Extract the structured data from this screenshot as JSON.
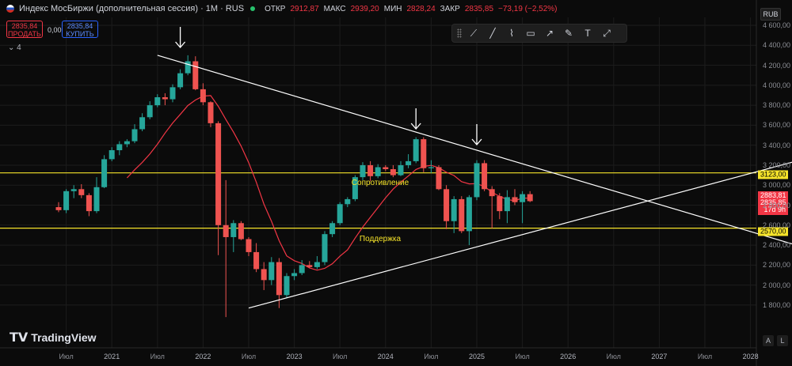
{
  "header": {
    "title": "Индекс МосБиржи (дополнительная сессия) · 1M · RUS",
    "ohlc": [
      {
        "label": "ОТКР",
        "value": "2912,87"
      },
      {
        "label": "МАКС",
        "value": "2939,20"
      },
      {
        "label": "МИН",
        "value": "2828,24"
      },
      {
        "label": "ЗАКР",
        "value": "2835,85"
      },
      {
        "label": "",
        "value": "−73,19 (−2,52%)"
      }
    ]
  },
  "trade": {
    "sell_price": "2835,84",
    "sell_label": "ПРОДАТЬ",
    "spread": "0,00",
    "buy_price": "2835,84",
    "buy_label": "КУПИТЬ"
  },
  "indicators_toggle": "4",
  "currency": "RUB",
  "toolbar": [
    "node-line-icon",
    "line-icon",
    "path-icon",
    "rectangle-icon",
    "ray-icon",
    "pencil-icon",
    "text-icon",
    "measure-icon"
  ],
  "price_tags": {
    "resistance": "3123,00",
    "support": "2570,00",
    "last_high": "2883,81",
    "last_close": "2835,85",
    "countdown": "17d 9h"
  },
  "annotations": {
    "resistance": "Сопротивление",
    "support": "Поддержка"
  },
  "logo": "TradingView",
  "corner_buttons": [
    "A",
    "L"
  ],
  "colors": {
    "up": "#26a69a",
    "down": "#ef5350",
    "ma": "#f23645",
    "level": "#f5e32a",
    "trend": "#ffffff"
  },
  "chart_data": {
    "type": "candlestick",
    "title": "Индекс МосБиржи (дополнительная сессия) · 1M · RUS",
    "ylim": [
      1600,
      4600
    ],
    "y_ticks": [
      "4 600,00",
      "4 400,00",
      "4 200,00",
      "4 000,00",
      "3 800,00",
      "3 600,00",
      "3 400,00",
      "3 200,00",
      "3 000,00",
      "2 800,00",
      "2 600,00",
      "2 400,00",
      "2 200,00",
      "2 000,00",
      "1 800,00"
    ],
    "x_ticks": [
      "Июл",
      "2021",
      "Июл",
      "2022",
      "Июл",
      "2023",
      "Июл",
      "2024",
      "Июл",
      "2025",
      "Июл",
      "2026",
      "Июл",
      "2027",
      "Июл",
      "2028"
    ],
    "candles": [
      [
        2780,
        2830,
        2730,
        2750
      ],
      [
        2750,
        2960,
        2720,
        2940
      ],
      [
        2940,
        3000,
        2870,
        2960
      ],
      [
        2960,
        3010,
        2870,
        2900
      ],
      [
        2900,
        2920,
        2690,
        2740
      ],
      [
        2740,
        3080,
        2720,
        2980
      ],
      [
        2980,
        3300,
        2970,
        3260
      ],
      [
        3260,
        3380,
        3240,
        3350
      ],
      [
        3350,
        3440,
        3300,
        3410
      ],
      [
        3410,
        3460,
        3380,
        3440
      ],
      [
        3440,
        3610,
        3420,
        3560
      ],
      [
        3560,
        3720,
        3540,
        3680
      ],
      [
        3680,
        3840,
        3660,
        3800
      ],
      [
        3800,
        3910,
        3780,
        3880
      ],
      [
        3880,
        3920,
        3800,
        3860
      ],
      [
        3860,
        4010,
        3830,
        3980
      ],
      [
        3980,
        4160,
        3960,
        4120
      ],
      [
        4120,
        4300,
        4100,
        4240
      ],
      [
        4240,
        4290,
        3950,
        3960
      ],
      [
        3960,
        4020,
        3800,
        3830
      ],
      [
        3830,
        3840,
        3580,
        3620
      ],
      [
        3620,
        3640,
        2300,
        2600
      ],
      [
        2600,
        3050,
        1680,
        2480
      ],
      [
        2480,
        2650,
        2330,
        2620
      ],
      [
        2620,
        2640,
        2450,
        2460
      ],
      [
        2460,
        2480,
        2290,
        2330
      ],
      [
        2330,
        2420,
        2130,
        2160
      ],
      [
        2160,
        2230,
        1950,
        2050
      ],
      [
        2050,
        2280,
        2000,
        2230
      ],
      [
        2230,
        2270,
        1770,
        1900
      ],
      [
        1900,
        2120,
        1870,
        2090
      ],
      [
        2090,
        2160,
        2050,
        2120
      ],
      [
        2120,
        2250,
        2100,
        2200
      ],
      [
        2200,
        2240,
        2170,
        2180
      ],
      [
        2180,
        2290,
        2160,
        2230
      ],
      [
        2230,
        2540,
        2200,
        2510
      ],
      [
        2510,
        2640,
        2480,
        2620
      ],
      [
        2620,
        2830,
        2600,
        2810
      ],
      [
        2810,
        2880,
        2780,
        2860
      ],
      [
        2860,
        3100,
        2840,
        3080
      ],
      [
        3080,
        3230,
        3050,
        3200
      ],
      [
        3200,
        3240,
        3040,
        3090
      ],
      [
        3090,
        3210,
        3070,
        3180
      ],
      [
        3180,
        3200,
        3140,
        3160
      ],
      [
        3160,
        3200,
        3080,
        3100
      ],
      [
        3100,
        3240,
        3090,
        3200
      ],
      [
        3200,
        3310,
        3170,
        3240
      ],
      [
        3240,
        3480,
        3220,
        3460
      ],
      [
        3460,
        3480,
        3130,
        3170
      ],
      [
        3170,
        3250,
        3120,
        3180
      ],
      [
        3180,
        3200,
        2950,
        2960
      ],
      [
        2960,
        3000,
        2560,
        2640
      ],
      [
        2640,
        2890,
        2520,
        2860
      ],
      [
        2860,
        2890,
        2520,
        2540
      ],
      [
        2540,
        2900,
        2400,
        2880
      ],
      [
        2880,
        3250,
        2850,
        3220
      ],
      [
        3220,
        3250,
        2940,
        2960
      ],
      [
        2960,
        2990,
        2570,
        2890
      ],
      [
        2890,
        2920,
        2660,
        2740
      ],
      [
        2740,
        2950,
        2620,
        2880
      ],
      [
        2880,
        2960,
        2800,
        2830
      ],
      [
        2830,
        2940,
        2620,
        2910
      ],
      [
        2910,
        2940,
        2830,
        2840
      ]
    ],
    "ma_period": 10,
    "levels": [
      {
        "label": "Сопротивление",
        "value": 3123
      },
      {
        "label": "Поддержка",
        "value": 2570
      }
    ],
    "trendlines": [
      {
        "from": {
          "x": "Июл 2021",
          "y": 4300
        },
        "to": {
          "x": "2028",
          "y": 2400
        }
      },
      {
        "from": {
          "x": "Июл 2022",
          "y": 1770
        },
        "to": {
          "x": "2028",
          "y": 3240
        }
      }
    ],
    "arrows": [
      "Июл 2021",
      "Июл 2024",
      "2025"
    ]
  }
}
